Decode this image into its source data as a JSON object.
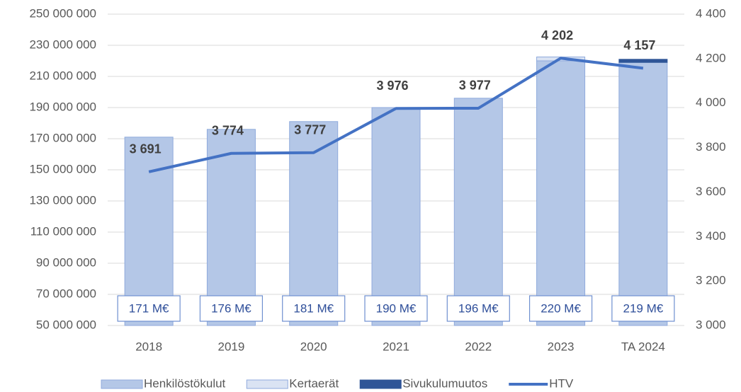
{
  "chart_data": {
    "type": "bar",
    "categories": [
      "2018",
      "2019",
      "2020",
      "2021",
      "2022",
      "2023",
      "TA 2024"
    ],
    "series": [
      {
        "name": "Henkilöstökulut",
        "color": "#b4c7e7",
        "values": [
          171000000,
          176000000,
          181000000,
          190000000,
          196000000,
          220000000,
          219000000
        ],
        "value_labels": [
          "171 M€",
          "176 M€",
          "181 M€",
          "190 M€",
          "196 M€",
          "220 M€",
          "219 M€"
        ]
      },
      {
        "name": "Kertaerät",
        "color": "#dae3f3",
        "values": [
          0,
          0,
          0,
          0,
          0,
          2500000,
          0
        ]
      },
      {
        "name": "Sivukulumuutos",
        "color": "#2f5597",
        "values": [
          0,
          0,
          0,
          0,
          0,
          0,
          2000000
        ]
      },
      {
        "name": "HTV",
        "type": "line",
        "axis": "y2",
        "color": "#4472c4",
        "values": [
          3691,
          3774,
          3777,
          3976,
          3977,
          4202,
          4157
        ],
        "value_labels": [
          "3 691",
          "3 774",
          "3 777",
          "3 976",
          "3 977",
          "4 202",
          "4 157"
        ]
      }
    ],
    "ylim": [
      50000000,
      250000000
    ],
    "yticks": [
      {
        "value": 50000000,
        "label": "50 000 000"
      },
      {
        "value": 70000000,
        "label": "70 000 000"
      },
      {
        "value": 90000000,
        "label": "90 000 000"
      },
      {
        "value": 110000000,
        "label": "110 000 000"
      },
      {
        "value": 130000000,
        "label": "130 000 000"
      },
      {
        "value": 150000000,
        "label": "150 000 000"
      },
      {
        "value": 170000000,
        "label": "170 000 000"
      },
      {
        "value": 190000000,
        "label": "190 000 000"
      },
      {
        "value": 210000000,
        "label": "210 000 000"
      },
      {
        "value": 230000000,
        "label": "230 000 000"
      },
      {
        "value": 250000000,
        "label": "250 000 000"
      }
    ],
    "y2lim": [
      3000,
      4400
    ],
    "y2ticks": [
      {
        "value": 3000,
        "label": "3 000"
      },
      {
        "value": 3200,
        "label": "3 200"
      },
      {
        "value": 3400,
        "label": "3 400"
      },
      {
        "value": 3600,
        "label": "3 600"
      },
      {
        "value": 3800,
        "label": "3 800"
      },
      {
        "value": 4000,
        "label": "4 000"
      },
      {
        "value": 4200,
        "label": "4 200"
      },
      {
        "value": 4400,
        "label": "4 400"
      }
    ],
    "grid": true,
    "legend": "bottom"
  }
}
